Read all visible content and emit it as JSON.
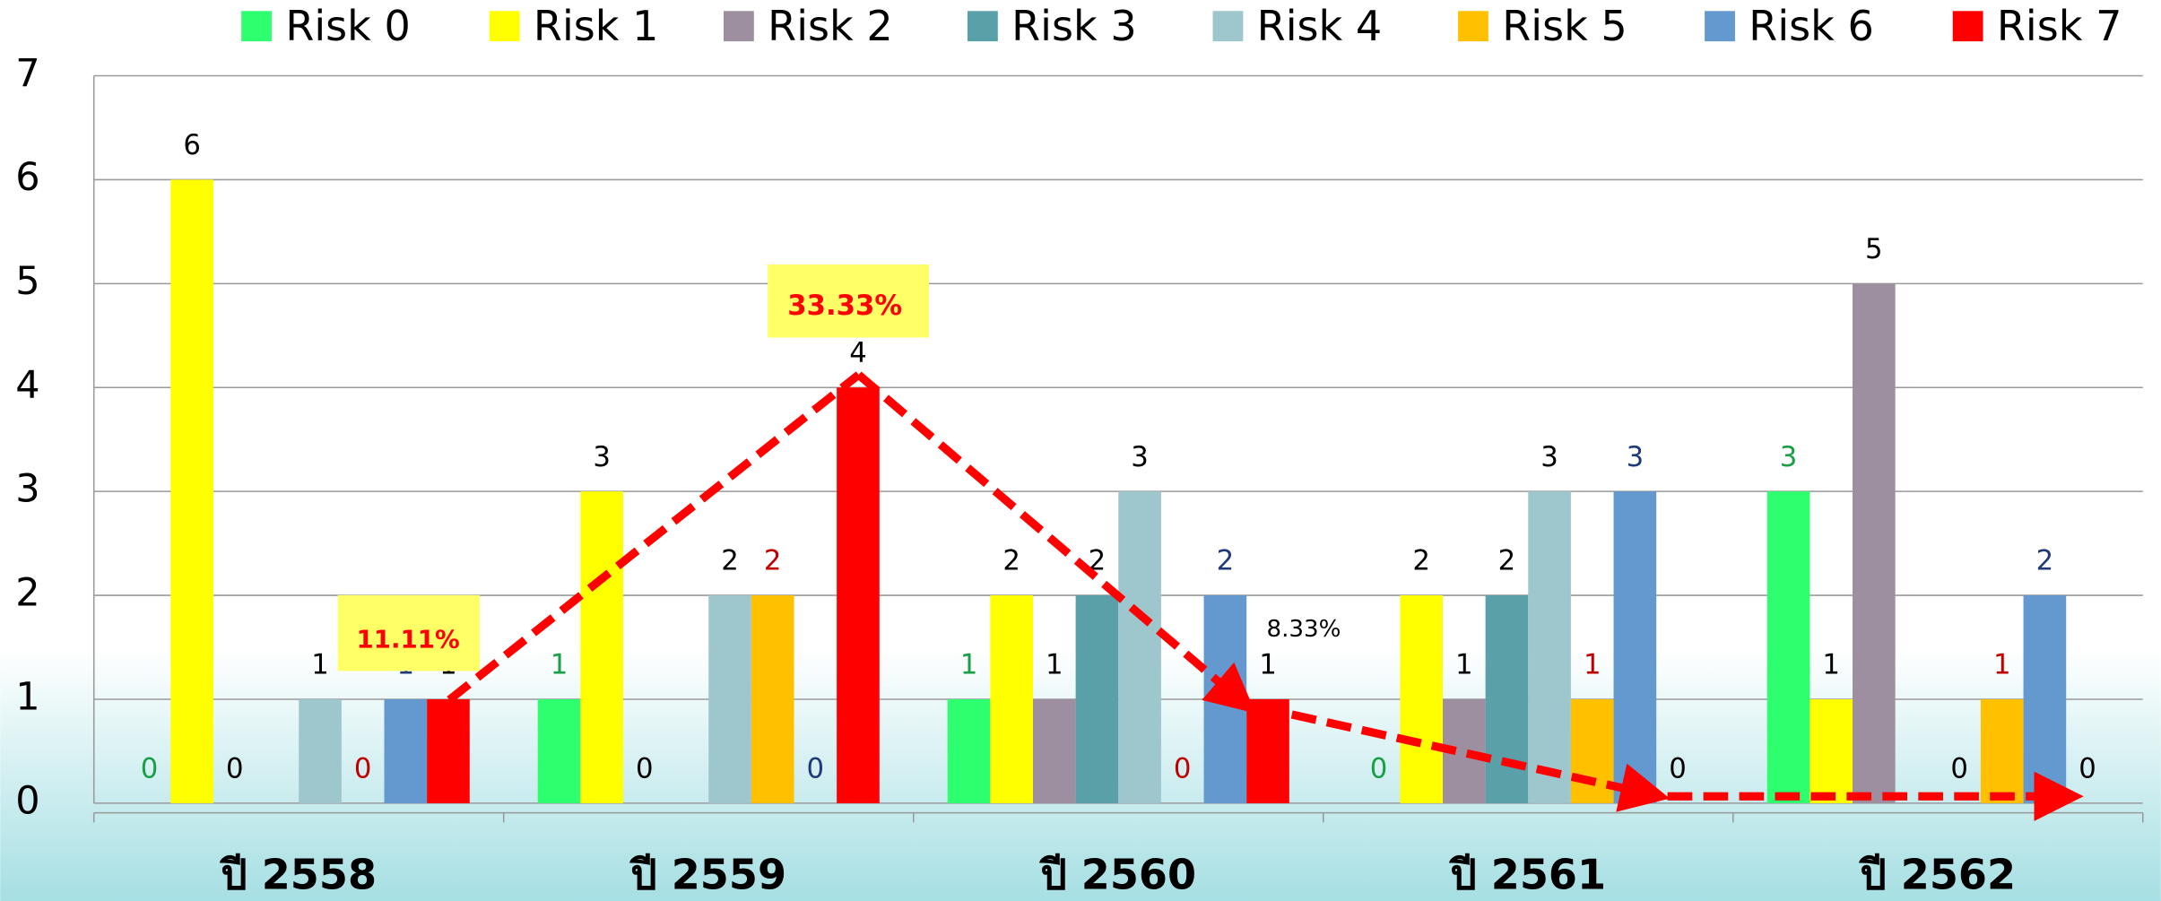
{
  "chart_data": {
    "type": "bar",
    "categories": [
      "ปี 2558",
      "ปี 2559",
      "ปี 2560",
      "ปี 2561",
      "ปี 2562"
    ],
    "series": [
      {
        "name": "Risk 0",
        "color": "#2eff6e",
        "label_color": "#1a9e48",
        "values": [
          0,
          1,
          1,
          0,
          3
        ]
      },
      {
        "name": "Risk 1",
        "color": "#ffff00",
        "label_color": "#000000",
        "values": [
          6,
          3,
          2,
          2,
          1
        ]
      },
      {
        "name": "Risk 2",
        "color": "#9e8fa0",
        "label_color": "#000000",
        "values": [
          0,
          0,
          1,
          1,
          5
        ]
      },
      {
        "name": "Risk 3",
        "color": "#5aa0a8",
        "label_color": "#000000",
        "values": [
          null,
          null,
          2,
          2,
          null
        ]
      },
      {
        "name": "Risk 4",
        "color": "#9ec6cd",
        "label_color": "#000000",
        "values": [
          1,
          2,
          3,
          3,
          0
        ]
      },
      {
        "name": "Risk 5",
        "color": "#ffc000",
        "label_color": "#c00000",
        "values": [
          0,
          2,
          0,
          1,
          1
        ]
      },
      {
        "name": "Risk 6",
        "color": "#6399cf",
        "label_color": "#1f3a7a",
        "values": [
          1,
          0,
          2,
          3,
          2
        ]
      },
      {
        "name": "Risk 7",
        "color": "#ff0000",
        "label_color": "#000000",
        "values": [
          1,
          4,
          1,
          0,
          0
        ]
      }
    ],
    "ylim": [
      0,
      7
    ],
    "yticks": [
      0,
      1,
      2,
      3,
      4,
      5,
      6,
      7
    ],
    "grid": true,
    "annotations": [
      "11.11%",
      "33.33%",
      "8.33%"
    ]
  }
}
